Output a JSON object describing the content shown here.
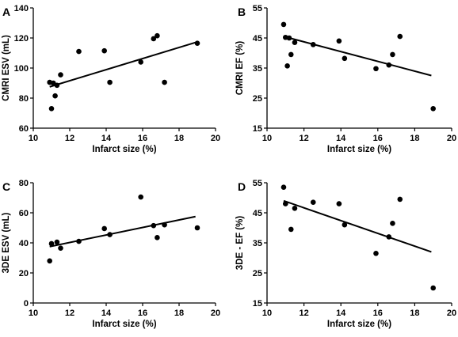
{
  "chart_data": [
    {
      "type": "scatter",
      "panel_label": "A",
      "xlabel": "Infarct size (%)",
      "ylabel": "CMRI ESV (mL)",
      "xlim": [
        10,
        20
      ],
      "ylim": [
        60,
        140
      ],
      "xticks": [
        10,
        12,
        14,
        16,
        18,
        20
      ],
      "yticks": [
        60,
        80,
        100,
        120,
        140
      ],
      "points": [
        {
          "x": 10.9,
          "y": 90.5
        },
        {
          "x": 11.0,
          "y": 73
        },
        {
          "x": 11.1,
          "y": 90
        },
        {
          "x": 11.2,
          "y": 81.5
        },
        {
          "x": 11.3,
          "y": 88.5
        },
        {
          "x": 11.5,
          "y": 95.5
        },
        {
          "x": 12.5,
          "y": 111
        },
        {
          "x": 13.9,
          "y": 111.5
        },
        {
          "x": 14.2,
          "y": 90.5
        },
        {
          "x": 15.9,
          "y": 104
        },
        {
          "x": 16.6,
          "y": 119.5
        },
        {
          "x": 16.8,
          "y": 121.5
        },
        {
          "x": 17.2,
          "y": 90.5
        },
        {
          "x": 19.0,
          "y": 116.5
        }
      ],
      "fit_line": [
        {
          "x": 10.9,
          "y": 87.5
        },
        {
          "x": 18.9,
          "y": 117
        }
      ],
      "grid": false
    },
    {
      "type": "scatter",
      "panel_label": "B",
      "xlabel": "Infarct size (%)",
      "ylabel": "CMRI EF (%)",
      "xlim": [
        10,
        20
      ],
      "ylim": [
        15,
        55
      ],
      "xticks": [
        10,
        12,
        14,
        16,
        18,
        20
      ],
      "yticks": [
        15,
        25,
        35,
        45,
        55
      ],
      "points": [
        {
          "x": 10.9,
          "y": 49.5
        },
        {
          "x": 11.0,
          "y": 45.2
        },
        {
          "x": 11.1,
          "y": 35.7
        },
        {
          "x": 11.2,
          "y": 45
        },
        {
          "x": 11.3,
          "y": 39.5
        },
        {
          "x": 11.5,
          "y": 43.5
        },
        {
          "x": 12.5,
          "y": 42.8
        },
        {
          "x": 13.9,
          "y": 44
        },
        {
          "x": 14.2,
          "y": 38.2
        },
        {
          "x": 15.9,
          "y": 34.8
        },
        {
          "x": 16.6,
          "y": 36
        },
        {
          "x": 16.8,
          "y": 39.5
        },
        {
          "x": 17.2,
          "y": 45.5
        },
        {
          "x": 19.0,
          "y": 21.5
        }
      ],
      "fit_line": [
        {
          "x": 10.9,
          "y": 45.5
        },
        {
          "x": 18.9,
          "y": 32.5
        }
      ],
      "grid": false
    },
    {
      "type": "scatter",
      "panel_label": "C",
      "xlabel": "Infarct size (%)",
      "ylabel": "3DE ESV (mL)",
      "xlim": [
        10,
        20
      ],
      "ylim": [
        0,
        80
      ],
      "xticks": [
        10,
        12,
        14,
        16,
        18,
        20
      ],
      "yticks": [
        0,
        20,
        40,
        60,
        80
      ],
      "points": [
        {
          "x": 10.9,
          "y": 28
        },
        {
          "x": 11.0,
          "y": 39.5
        },
        {
          "x": 11.3,
          "y": 40.5
        },
        {
          "x": 11.5,
          "y": 36.5
        },
        {
          "x": 12.5,
          "y": 41
        },
        {
          "x": 13.9,
          "y": 49.5
        },
        {
          "x": 14.2,
          "y": 45.5
        },
        {
          "x": 15.9,
          "y": 70.5
        },
        {
          "x": 16.6,
          "y": 51.5
        },
        {
          "x": 16.8,
          "y": 43.5
        },
        {
          "x": 17.2,
          "y": 52
        },
        {
          "x": 19.0,
          "y": 50
        }
      ],
      "fit_line": [
        {
          "x": 10.9,
          "y": 37.5
        },
        {
          "x": 18.9,
          "y": 57.5
        }
      ],
      "grid": false
    },
    {
      "type": "scatter",
      "panel_label": "D",
      "xlabel": "Infarct size (%)",
      "ylabel": "3DE - EF (%)",
      "xlim": [
        10,
        20
      ],
      "ylim": [
        15,
        55
      ],
      "xticks": [
        10,
        12,
        14,
        16,
        18,
        20
      ],
      "yticks": [
        15,
        25,
        35,
        45,
        55
      ],
      "points": [
        {
          "x": 10.9,
          "y": 53.5
        },
        {
          "x": 11.0,
          "y": 48
        },
        {
          "x": 11.3,
          "y": 39.5
        },
        {
          "x": 11.5,
          "y": 46.5
        },
        {
          "x": 12.5,
          "y": 48.5
        },
        {
          "x": 13.9,
          "y": 48
        },
        {
          "x": 14.2,
          "y": 41
        },
        {
          "x": 15.9,
          "y": 31.5
        },
        {
          "x": 16.6,
          "y": 37
        },
        {
          "x": 16.8,
          "y": 41.5
        },
        {
          "x": 17.2,
          "y": 49.5
        },
        {
          "x": 19.0,
          "y": 20
        }
      ],
      "fit_line": [
        {
          "x": 10.9,
          "y": 49
        },
        {
          "x": 18.9,
          "y": 32
        }
      ],
      "grid": false
    }
  ]
}
